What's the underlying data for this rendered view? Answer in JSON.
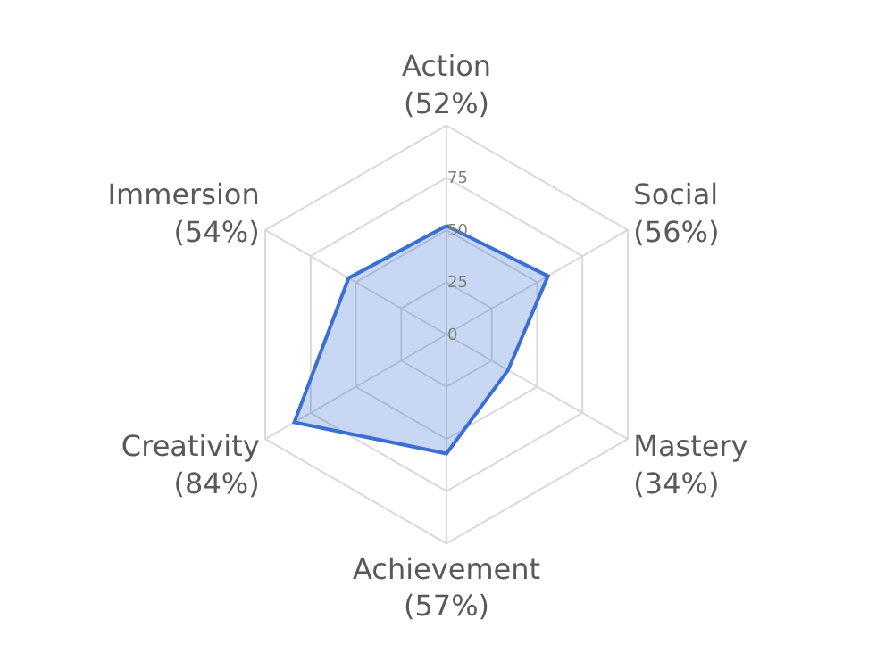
{
  "chart_data": {
    "type": "radar",
    "categories": [
      "Action\n(52%)",
      "Social\n(56%)",
      "Mastery\n(34%)",
      "Achievement\n(57%)",
      "Creativity\n(84%)",
      "Immersion\n(54%)"
    ],
    "series": [
      {
        "color": "#3b6fd4",
        "values": [
          52,
          56,
          34,
          57,
          84,
          54
        ]
      }
    ],
    "ylim": [
      0,
      100
    ],
    "yticks": [
      0,
      25,
      50,
      75
    ],
    "grid": true,
    "marker": "none",
    "line_style": "solid"
  }
}
